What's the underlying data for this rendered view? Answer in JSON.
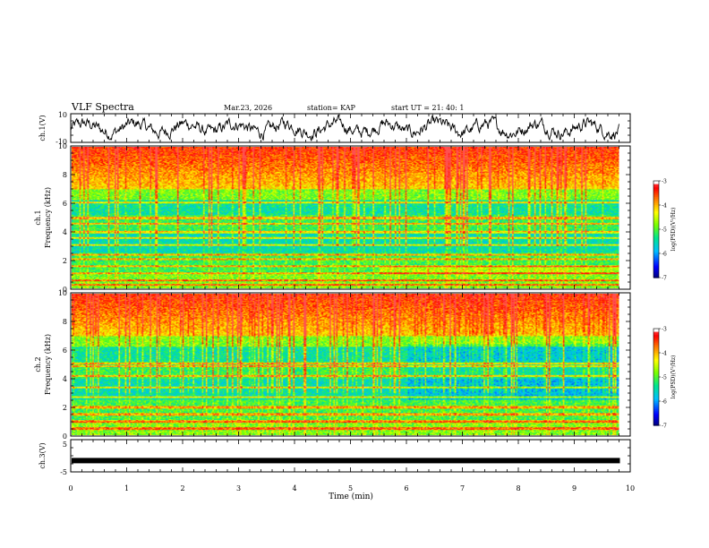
{
  "header": {
    "title": "VLF Spectra",
    "date": "Mar.23, 2026",
    "station": "station= KAP",
    "start_ut": "start UT = 21: 40: 1"
  },
  "colorbar": {
    "ticks": [
      "-3",
      "-4",
      "-5",
      "-6",
      "-7"
    ],
    "label": "log(PSD)(V²/Hz)",
    "colors": [
      "#000080",
      "#0000ff",
      "#00c8ff",
      "#00ff80",
      "#80ff00",
      "#ffff00",
      "#ff8000",
      "#ff0000",
      "#ffffff"
    ]
  },
  "chart_data": [
    {
      "type": "line",
      "name": "ch1-waveform",
      "ylabel": "ch.1(V)",
      "ylim": [
        -10,
        10
      ],
      "y_ticks": [
        "10",
        "-10"
      ],
      "xlim": [
        0,
        10
      ],
      "description_series": "broadband signal fluctuating roughly between -6 and +7 V, data ending near 9.8 min"
    },
    {
      "type": "heatmap",
      "name": "ch1-spectrogram",
      "ylabel_channel": "ch.1",
      "ylabel": "Frequency (kHz)",
      "ylim": [
        0,
        10
      ],
      "y_ticks": [
        "0",
        "2",
        "4",
        "6",
        "8",
        "10"
      ],
      "xlim": [
        0,
        10
      ],
      "zlim": [
        -7,
        -3
      ],
      "horizontal_lines_khz": [
        0.3,
        0.6,
        1.1,
        1.6,
        2.1,
        2.4,
        3.1,
        3.6,
        4.0,
        4.6,
        5.0,
        6.1
      ]
    },
    {
      "type": "heatmap",
      "name": "ch2-spectrogram",
      "ylabel_channel": "ch.2",
      "ylabel": "Frequency (kHz)",
      "ylim": [
        0,
        10
      ],
      "y_ticks": [
        "0",
        "2",
        "4",
        "6",
        "8",
        "10"
      ],
      "xlim": [
        0,
        10
      ],
      "zlim": [
        -7,
        -3
      ],
      "horizontal_lines_khz": [
        0.5,
        1.0,
        1.5,
        2.0,
        2.7,
        3.4,
        4.2,
        4.9,
        5.1
      ]
    },
    {
      "type": "line",
      "name": "ch3-waveform",
      "ylabel": "ch.3(V)",
      "ylim": [
        -5,
        5
      ],
      "y_ticks": [
        "5",
        "-5"
      ],
      "xlim": [
        0,
        10
      ],
      "level": -1.5
    }
  ],
  "xaxis": {
    "label": "Time (min)",
    "ticks": [
      "0",
      "1",
      "2",
      "3",
      "4",
      "5",
      "6",
      "7",
      "8",
      "9",
      "10"
    ],
    "range": [
      0,
      10
    ],
    "data_end": 9.8
  }
}
